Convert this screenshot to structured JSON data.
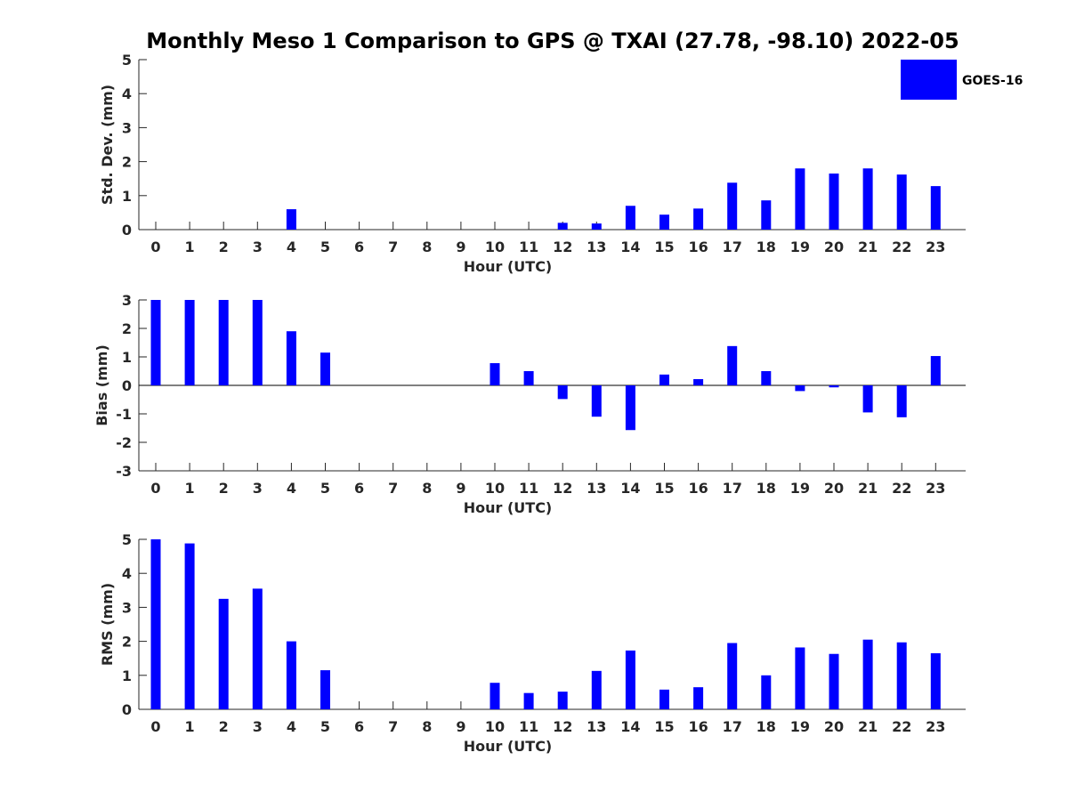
{
  "title": "Monthly Meso 1 Comparison to GPS @ TXAI (27.78, -98.10) 2022-05",
  "legend": {
    "label": "GOES-16",
    "color": "#0000ff",
    "placement": "top-right"
  },
  "chart_data": [
    {
      "type": "bar",
      "ylabel": "Std. Dev. (mm)",
      "xlabel": "Hour (UTC)",
      "ylim": [
        0,
        5
      ],
      "yticks": [
        0,
        1,
        2,
        3,
        4,
        5
      ],
      "categories": [
        "0",
        "1",
        "2",
        "3",
        "4",
        "5",
        "6",
        "7",
        "8",
        "9",
        "10",
        "11",
        "12",
        "13",
        "14",
        "15",
        "16",
        "17",
        "18",
        "19",
        "20",
        "21",
        "22",
        "23"
      ],
      "series": [
        {
          "name": "GOES-16",
          "values": [
            0,
            0,
            0,
            0,
            0.6,
            0,
            0,
            0,
            0,
            0,
            0,
            0,
            0.2,
            0.18,
            0.7,
            0.44,
            0.62,
            1.38,
            0.86,
            1.8,
            1.65,
            1.8,
            1.62,
            1.28
          ]
        }
      ]
    },
    {
      "type": "bar",
      "ylabel": "Bias (mm)",
      "xlabel": "Hour (UTC)",
      "ylim": [
        -3,
        3
      ],
      "yticks": [
        -3,
        -2,
        -1,
        0,
        1,
        2,
        3
      ],
      "categories": [
        "0",
        "1",
        "2",
        "3",
        "4",
        "5",
        "6",
        "7",
        "8",
        "9",
        "10",
        "11",
        "12",
        "13",
        "14",
        "15",
        "16",
        "17",
        "18",
        "19",
        "20",
        "21",
        "22",
        "23"
      ],
      "series": [
        {
          "name": "GOES-16",
          "values": [
            3.0,
            3.0,
            3.0,
            3.0,
            1.9,
            1.15,
            0,
            0,
            0,
            0,
            0.78,
            0.5,
            -0.48,
            -1.1,
            -1.57,
            0.38,
            0.22,
            1.38,
            0.5,
            -0.2,
            -0.07,
            -0.95,
            -1.12,
            1.03
          ]
        }
      ]
    },
    {
      "type": "bar",
      "ylabel": "RMS (mm)",
      "xlabel": "Hour (UTC)",
      "ylim": [
        0,
        5
      ],
      "yticks": [
        0,
        1,
        2,
        3,
        4,
        5
      ],
      "categories": [
        "0",
        "1",
        "2",
        "3",
        "4",
        "5",
        "6",
        "7",
        "8",
        "9",
        "10",
        "11",
        "12",
        "13",
        "14",
        "15",
        "16",
        "17",
        "18",
        "19",
        "20",
        "21",
        "22",
        "23"
      ],
      "series": [
        {
          "name": "GOES-16",
          "values": [
            5.0,
            4.88,
            3.25,
            3.55,
            2.0,
            1.15,
            0,
            0,
            0,
            0,
            0.78,
            0.48,
            0.52,
            1.13,
            1.73,
            0.58,
            0.65,
            1.95,
            1.0,
            1.82,
            1.63,
            2.05,
            1.97,
            1.65
          ]
        }
      ]
    }
  ]
}
